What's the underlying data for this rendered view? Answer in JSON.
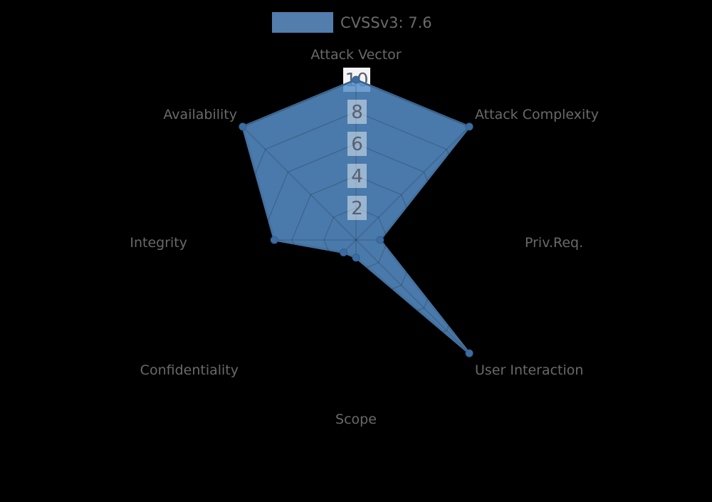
{
  "page": {
    "background": "#000000"
  },
  "legend": {
    "label": "CVSSv3: 7.6",
    "swatch_color": "#527dad",
    "text_color": "#6a6a6a",
    "position": "top"
  },
  "chart_data": {
    "type": "radar",
    "title": "",
    "categories": [
      "Attack Vector",
      "Attack Complexity",
      "Priv.Req.",
      "User Interaction",
      "Scope",
      "Confidentiality",
      "Integrity",
      "Availability"
    ],
    "series": [
      {
        "name": "CVSSv3: 7.6",
        "values": [
          10,
          10,
          1.5,
          10,
          1.1,
          1.1,
          5.1,
          10
        ]
      }
    ],
    "radial_axis": {
      "min": 0,
      "max": 10,
      "tick_values": [
        2,
        4,
        6,
        8,
        10
      ],
      "grid": true,
      "grid_shape": "polygon"
    },
    "legend_position": "top-center",
    "styles": {
      "series_fill": "#578fc9",
      "series_fill_opacity": 0.85,
      "series_stroke": "#44719f",
      "series_stroke_width": 3,
      "marker_fill": "#3d6ca2",
      "marker_stroke": "#33608f",
      "axis_label_color": "#696969",
      "tick_label_color": "#556070",
      "tick_box_fill": "#ffffff",
      "tick_box_opacity": 0.45,
      "tick_box_top_fill": "#f4f4f4",
      "grid_color": "#000000",
      "grid_opacity": 0.18
    }
  }
}
